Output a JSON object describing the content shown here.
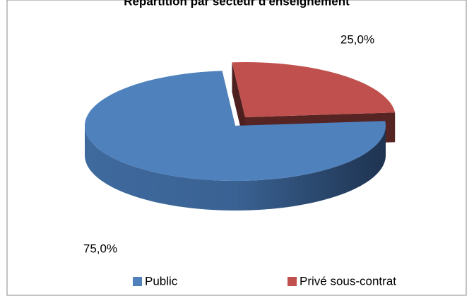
{
  "chart_data": {
    "type": "pie3d",
    "title": "Répartition par secteur d'enseignement",
    "categories": [
      "Public",
      "Privé sous-contrat"
    ],
    "values": [
      75,
      25
    ],
    "value_labels": [
      "75,0%",
      "25,0%"
    ],
    "colors": [
      "#4f81bd",
      "#c0504d"
    ],
    "legend": "bottom"
  }
}
